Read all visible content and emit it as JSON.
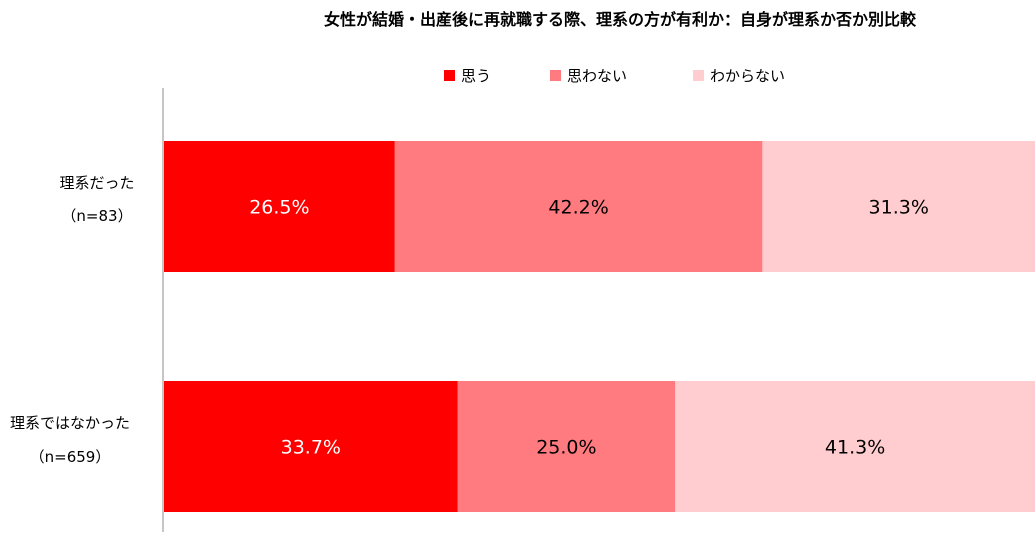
{
  "chart_data": {
    "type": "bar",
    "orientation": "horizontal",
    "stacked": "percent",
    "title": "女性が結婚・出産後に再就職する際、理系の方が有利か：自身が理系か否か別比較",
    "legend_position": "top",
    "categories": [
      [
        "理系だった",
        "（n=83）"
      ],
      [
        "理系ではなかった",
        "（n=659）"
      ]
    ],
    "series": [
      {
        "name": "思う",
        "color": "#ff0000",
        "values": [
          26.5,
          33.7
        ],
        "labels": [
          "26.5%",
          "33.7%"
        ],
        "label_color": "#ffffff"
      },
      {
        "name": "思わない",
        "color": "#ff7b7f",
        "values": [
          42.2,
          25.0
        ],
        "labels": [
          "42.2%",
          "25.0%"
        ],
        "label_color": "#000000"
      },
      {
        "name": "わからない",
        "color": "#ffccd0",
        "values": [
          31.3,
          41.3
        ],
        "labels": [
          "31.3%",
          "41.3%"
        ],
        "label_color": "#000000"
      }
    ],
    "xlim": [
      0,
      100
    ],
    "grid": false
  }
}
